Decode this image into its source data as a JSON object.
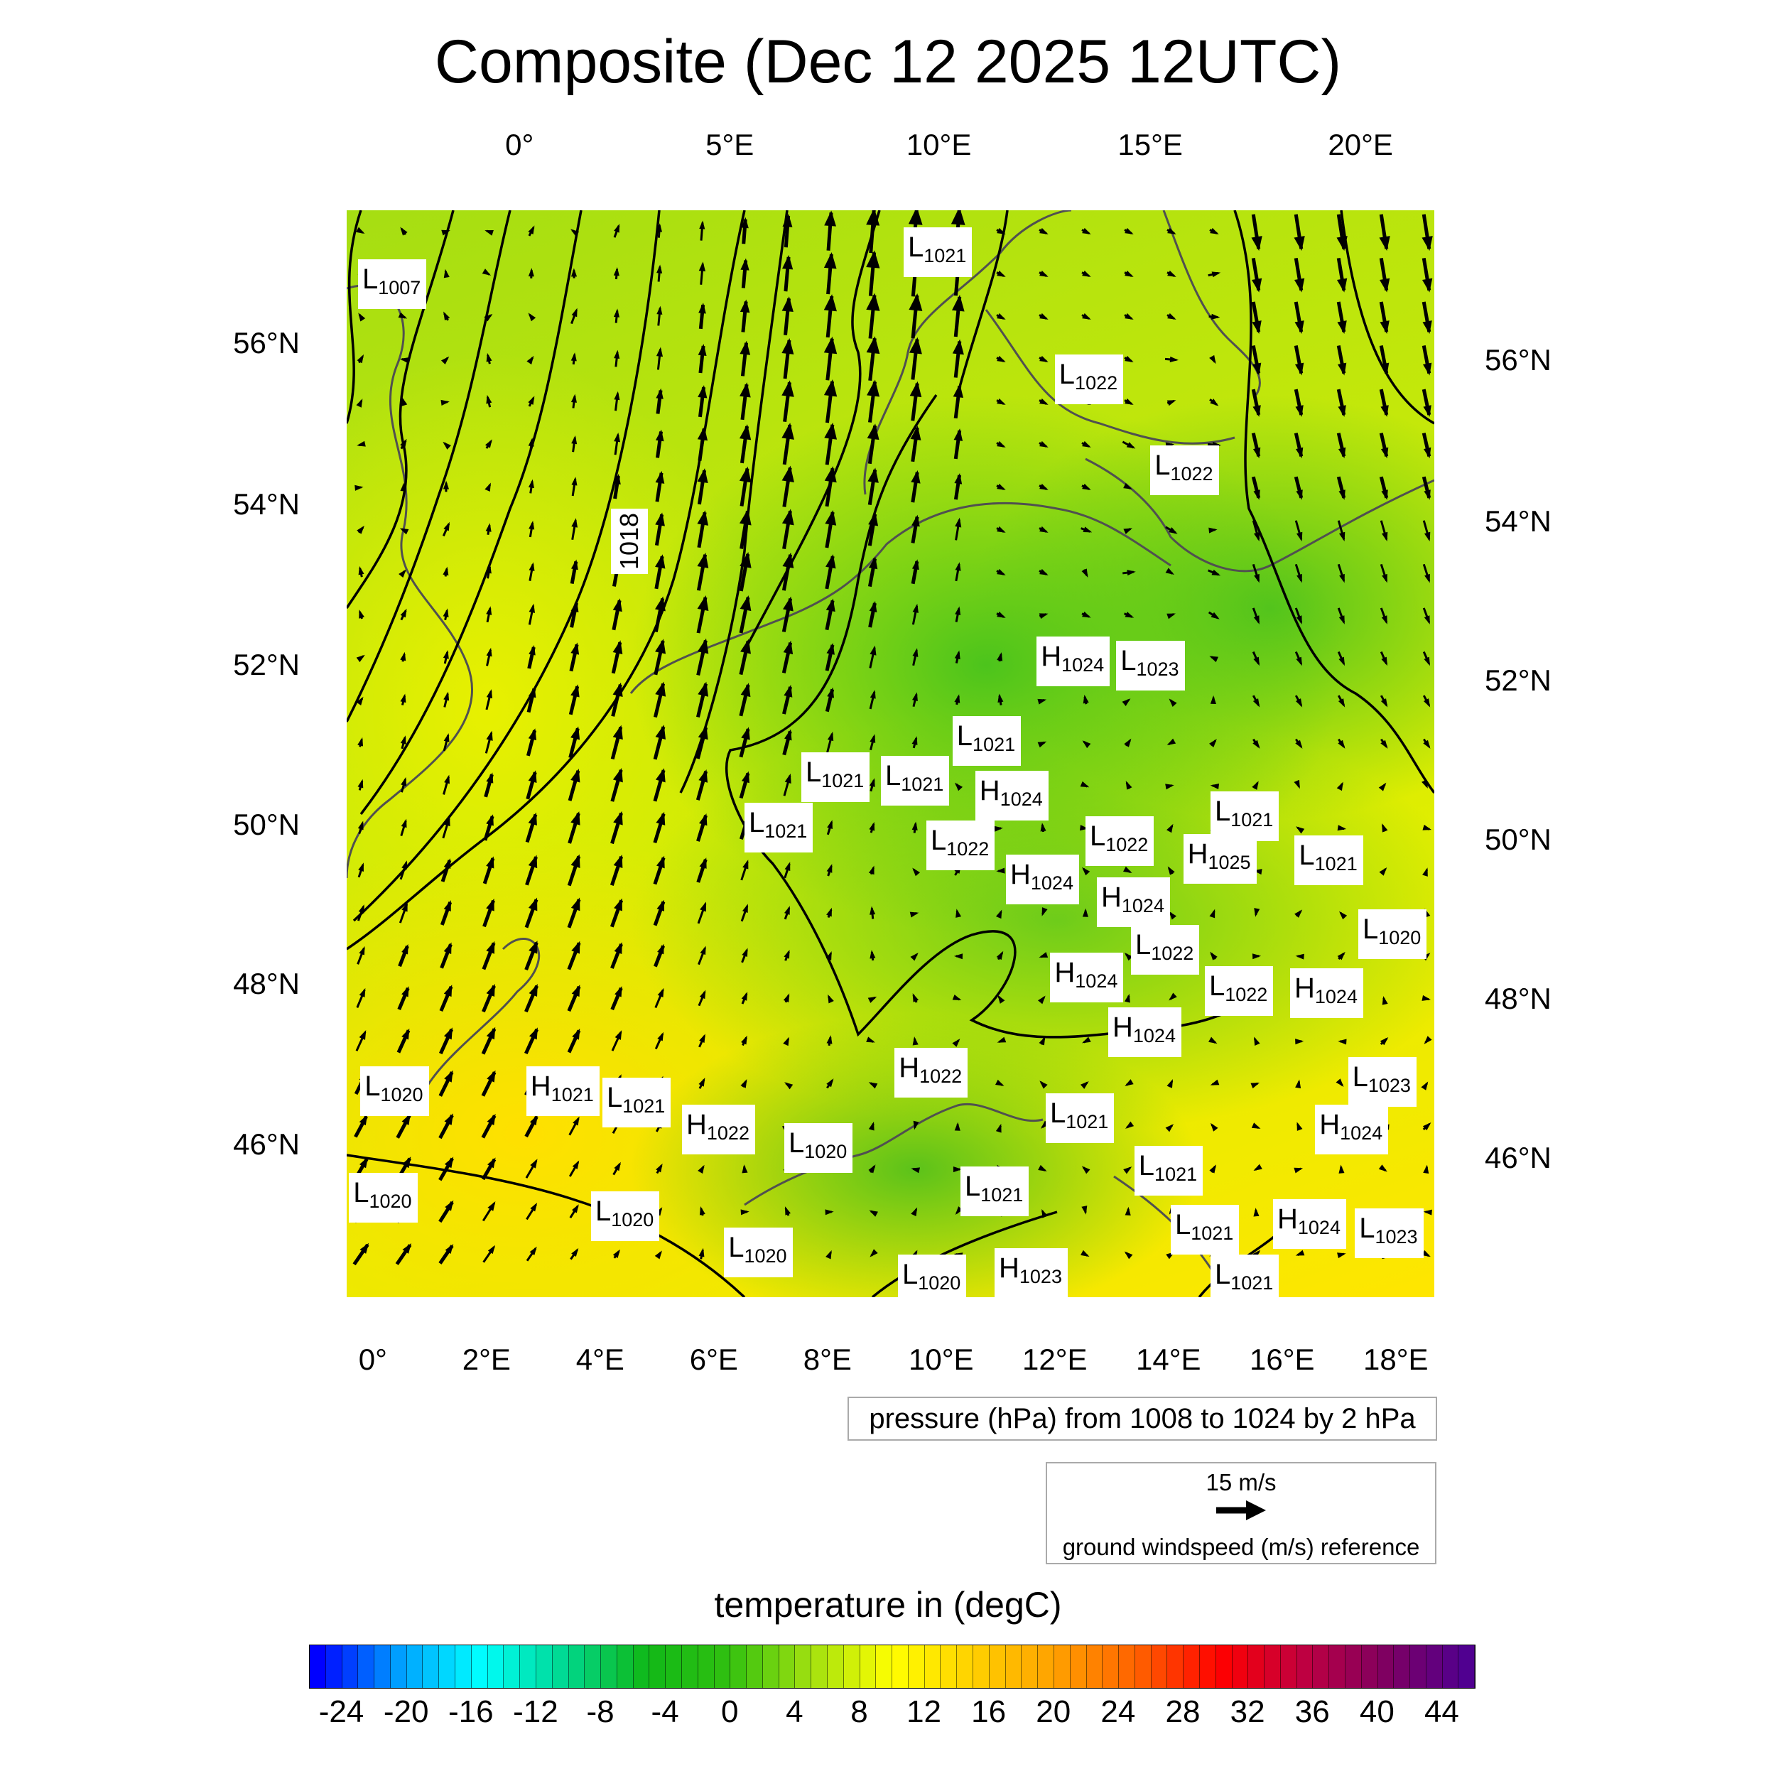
{
  "title": "Composite (Dec 12 2025 12UTC)",
  "axes": {
    "top_lon": [
      "0°",
      "5°E",
      "10°E",
      "15°E",
      "20°E"
    ],
    "bottom_lon": [
      "0°",
      "2°E",
      "4°E",
      "6°E",
      "8°E",
      "10°E",
      "12°E",
      "14°E",
      "16°E",
      "18°E"
    ],
    "left_lat": [
      "56°N",
      "54°N",
      "52°N",
      "50°N",
      "48°N",
      "46°N"
    ],
    "right_lat": [
      "56°N",
      "54°N",
      "52°N",
      "50°N",
      "48°N",
      "46°N"
    ]
  },
  "contour_label": "1018",
  "pressure_centers": [
    {
      "t": "L",
      "v": "1007"
    },
    {
      "t": "L",
      "v": "1021"
    },
    {
      "t": "L",
      "v": "1022"
    },
    {
      "t": "L",
      "v": "1022"
    },
    {
      "t": "H",
      "v": "1024"
    },
    {
      "t": "L",
      "v": "1023"
    },
    {
      "t": "L",
      "v": "1021"
    },
    {
      "t": "L",
      "v": "1021"
    },
    {
      "t": "L",
      "v": "1021"
    },
    {
      "t": "H",
      "v": "1024"
    },
    {
      "t": "L",
      "v": "1021"
    },
    {
      "t": "L",
      "v": "1021"
    },
    {
      "t": "L",
      "v": "1022"
    },
    {
      "t": "H",
      "v": "1024"
    },
    {
      "t": "L",
      "v": "1022"
    },
    {
      "t": "H",
      "v": "1025"
    },
    {
      "t": "L",
      "v": "1021"
    },
    {
      "t": "H",
      "v": "1024"
    },
    {
      "t": "L",
      "v": "1020"
    },
    {
      "t": "H",
      "v": "1024"
    },
    {
      "t": "L",
      "v": "1022"
    },
    {
      "t": "L",
      "v": "1022"
    },
    {
      "t": "H",
      "v": "1024"
    },
    {
      "t": "H",
      "v": "1024"
    },
    {
      "t": "H",
      "v": "1022"
    },
    {
      "t": "L",
      "v": "1020"
    },
    {
      "t": "H",
      "v": "1021"
    },
    {
      "t": "L",
      "v": "1021"
    },
    {
      "t": "H",
      "v": "1022"
    },
    {
      "t": "L",
      "v": "1021"
    },
    {
      "t": "L",
      "v": "1023"
    },
    {
      "t": "H",
      "v": "1024"
    },
    {
      "t": "L",
      "v": "1020"
    },
    {
      "t": "L",
      "v": "1021"
    },
    {
      "t": "L",
      "v": "1020"
    },
    {
      "t": "L",
      "v": "1020"
    },
    {
      "t": "L",
      "v": "1021"
    },
    {
      "t": "L",
      "v": "1021"
    },
    {
      "t": "H",
      "v": "1024"
    },
    {
      "t": "L",
      "v": "1023"
    },
    {
      "t": "L",
      "v": "1020"
    },
    {
      "t": "H",
      "v": "1023"
    },
    {
      "t": "L",
      "v": "1021"
    },
    {
      "t": "L",
      "v": "1020"
    }
  ],
  "pressure_legend": "pressure (hPa) from 1008 to 1024 by 2 hPa",
  "wind_legend": {
    "speed": "15 m/s",
    "label": "ground windspeed (m/s) reference"
  },
  "colorbar": {
    "title": "temperature in (degC)",
    "labels": [
      "-24",
      "-20",
      "-16",
      "-12",
      "-8",
      "-4",
      "0",
      "4",
      "8",
      "12",
      "16",
      "20",
      "24",
      "28",
      "32",
      "36",
      "40",
      "44"
    ],
    "min": -26,
    "max": 46,
    "step": 1,
    "stops": [
      "#0000ff",
      "#00a0ff",
      "#00ffff",
      "#00d890",
      "#10b818",
      "#30c010",
      "#a0e010",
      "#ffff00",
      "#ffd000",
      "#ffa000",
      "#ff6000",
      "#ff0000",
      "#c00040",
      "#800060",
      "#500090"
    ]
  }
}
